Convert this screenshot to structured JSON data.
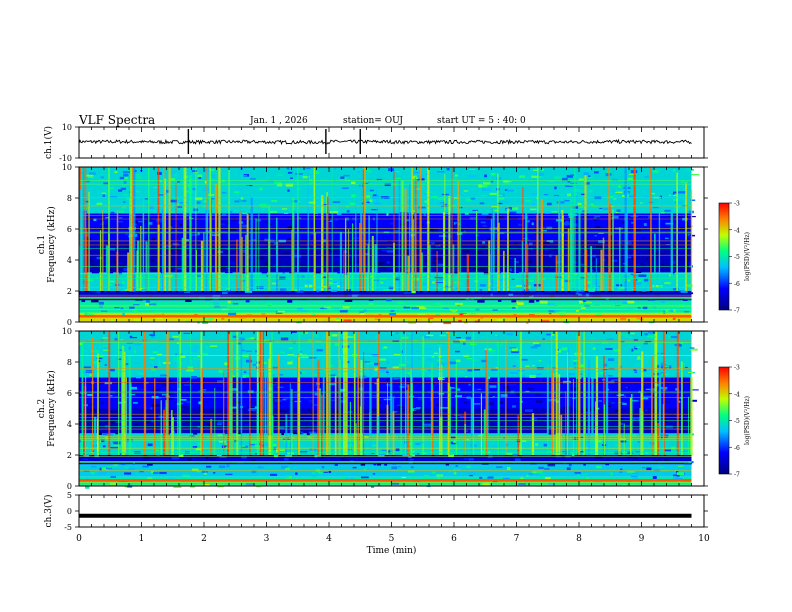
{
  "header": {
    "title": "VLF Spectra",
    "date": "Jan. 1 , 2026",
    "station": "station= OUJ",
    "start": "start UT = 5 : 40: 0"
  },
  "colors": {
    "spectral_low": "#00007f",
    "spectral_mid": "#00ff80",
    "spectral_high": "#ff0000",
    "waveform": "#000000"
  },
  "chart_data": [
    {
      "type": "line",
      "panel": "ch1-waveform",
      "ylabel": "ch.1(V)",
      "ylim": [
        -10,
        10
      ],
      "yticks": [
        "10",
        "-10"
      ],
      "x": [
        0,
        1,
        2,
        3,
        4,
        5,
        6,
        7,
        8,
        9,
        9.8
      ],
      "values": [
        0.5,
        0.3,
        0.4,
        0.2,
        0.5,
        0.3,
        0.4,
        0.3,
        0.5,
        0.4,
        0.3
      ],
      "spikes_x": [
        1.75,
        3.95,
        4.5
      ],
      "xlim": [
        0,
        10
      ]
    },
    {
      "type": "heatmap",
      "panel": "ch1-spectrogram",
      "ylabel": "ch.1 Frequency (kHz)",
      "ylim": [
        0,
        10
      ],
      "yticks": [
        "0",
        "2",
        "4",
        "6",
        "8",
        "10"
      ],
      "xlim": [
        0,
        10
      ],
      "data_xmax": 9.8,
      "colorbar": {
        "label": "log(PSD)(V²/Hz)",
        "range": [
          -7,
          -3
        ],
        "ticks": [
          "-3",
          "-4",
          "-5",
          "-6",
          "-7"
        ]
      },
      "bands": [
        {
          "f_low": 0,
          "f_high": 0.6,
          "level": -4.0
        },
        {
          "f_low": 0.6,
          "f_high": 1.4,
          "level": -5.0
        },
        {
          "f_low": 1.4,
          "f_high": 2.0,
          "level": -6.5
        },
        {
          "f_low": 2.0,
          "f_high": 3.2,
          "level": -5.2
        },
        {
          "f_low": 3.2,
          "f_high": 5.2,
          "level": -6.6
        },
        {
          "f_low": 5.2,
          "f_high": 7.0,
          "level": -6.2
        },
        {
          "f_low": 7.0,
          "f_high": 10.0,
          "level": -5.2
        }
      ]
    },
    {
      "type": "heatmap",
      "panel": "ch2-spectrogram",
      "ylabel": "ch.2 Frequency (kHz)",
      "ylim": [
        0,
        10
      ],
      "yticks": [
        "0",
        "2",
        "4",
        "6",
        "8",
        "10"
      ],
      "xlim": [
        0,
        10
      ],
      "data_xmax": 9.8,
      "colorbar": {
        "label": "log(PSD)(V²/Hz)",
        "range": [
          -7,
          -3
        ],
        "ticks": [
          "-3",
          "-4",
          "-5",
          "-6",
          "-7"
        ]
      },
      "bands": [
        {
          "f_low": 0,
          "f_high": 0.6,
          "level": -5.0
        },
        {
          "f_low": 0.6,
          "f_high": 1.4,
          "level": -5.3
        },
        {
          "f_low": 1.4,
          "f_high": 2.0,
          "level": -6.5
        },
        {
          "f_low": 2.0,
          "f_high": 3.4,
          "level": -5.2
        },
        {
          "f_low": 3.4,
          "f_high": 5.0,
          "level": -6.6
        },
        {
          "f_low": 5.0,
          "f_high": 7.0,
          "level": -6.2
        },
        {
          "f_low": 7.0,
          "f_high": 10.0,
          "level": -5.2
        }
      ]
    },
    {
      "type": "line",
      "panel": "ch3-waveform",
      "ylabel": "ch.3(V)",
      "ylim": [
        -5,
        5
      ],
      "yticks": [
        "5",
        "0",
        "-5"
      ],
      "x": [
        0,
        9.8
      ],
      "values": [
        -1.5,
        -1.5
      ],
      "xlim": [
        0,
        10
      ],
      "xlabel": "Time (min)",
      "xticks": [
        "0",
        "1",
        "2",
        "3",
        "4",
        "5",
        "6",
        "7",
        "8",
        "9",
        "10"
      ]
    }
  ]
}
